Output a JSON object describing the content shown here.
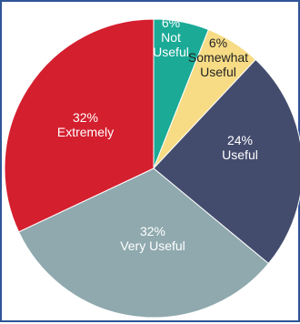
{
  "chart_data": {
    "type": "pie",
    "title": "",
    "slices": [
      {
        "lines": [
          "6%",
          "Not",
          "Useful"
        ],
        "value": 6,
        "color": "#1aaa96",
        "text_color": "#ffffff"
      },
      {
        "lines": [
          "6%",
          "Somewhat",
          "Useful"
        ],
        "value": 6,
        "color": "#f7dc85",
        "text_color": "#222222"
      },
      {
        "lines": [
          "24%",
          "Useful"
        ],
        "value": 24,
        "color": "#444c6e",
        "text_color": "#ffffff"
      },
      {
        "lines": [
          "32%",
          "Very Useful"
        ],
        "value": 32,
        "color": "#8fa9ae",
        "text_color": "#ffffff"
      },
      {
        "lines": [
          "32%",
          "Extremely"
        ],
        "value": 32,
        "color": "#d41f2f",
        "text_color": "#ffffff"
      }
    ],
    "start_angle_deg": 0,
    "direction": "clockwise",
    "legend": "none"
  }
}
